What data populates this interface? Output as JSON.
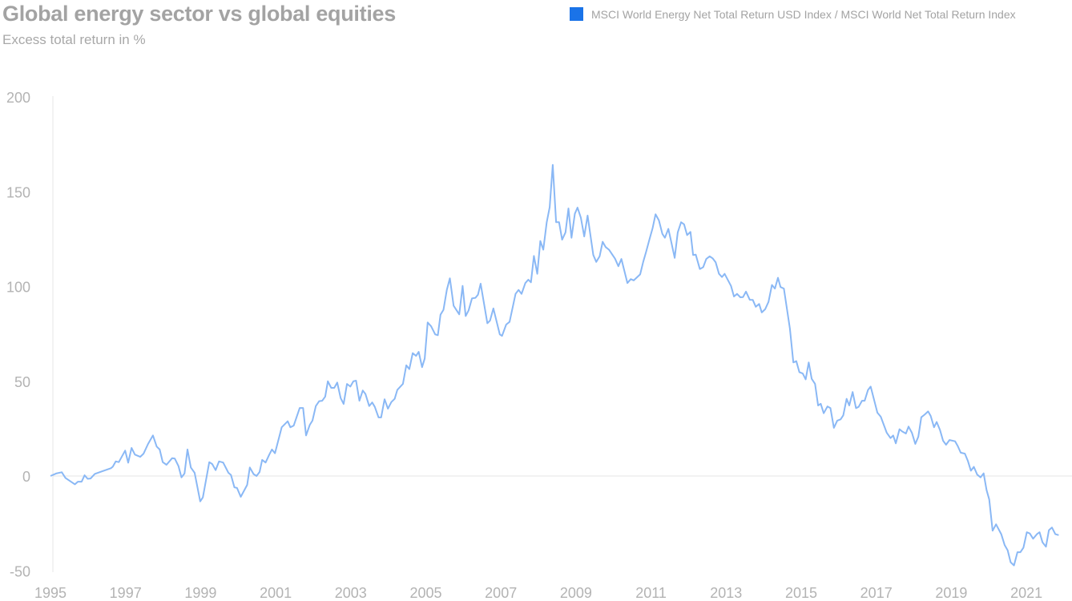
{
  "chart_data": {
    "type": "line",
    "title": "Global energy sector vs global equities",
    "subtitle": "Excess total return in %",
    "xlabel": "",
    "ylabel": "Excess total return in %",
    "xlim": [
      1995,
      2022.15
    ],
    "ylim": [
      -50,
      200
    ],
    "x_ticks": [
      "1995",
      "1997",
      "1999",
      "2001",
      "2003",
      "2005",
      "2007",
      "2009",
      "2011",
      "2013",
      "2015",
      "2017",
      "2019",
      "2021"
    ],
    "y_ticks": [
      "200",
      "150",
      "100",
      "50",
      "0",
      "-50"
    ],
    "grid": "zero-line only",
    "legend_position": "top-right",
    "series": [
      {
        "name": "MSCI World Energy Net Total Return USD Index / MSCI World Net Total Return Index",
        "color": "#8ab8f5",
        "legend_color": "#1a73e8",
        "points": [
          [
            1995.0,
            0
          ],
          [
            1995.15,
            1.3
          ],
          [
            1995.3,
            2
          ],
          [
            1995.4,
            -1
          ],
          [
            1995.65,
            -4.4
          ],
          [
            1995.73,
            -3
          ],
          [
            1995.83,
            -3
          ],
          [
            1995.91,
            0.4
          ],
          [
            1995.99,
            -1.5
          ],
          [
            1996.07,
            -1.3
          ],
          [
            1996.18,
            1.1
          ],
          [
            1996.61,
            4.1
          ],
          [
            1996.66,
            4.9
          ],
          [
            1996.74,
            7.7
          ],
          [
            1996.82,
            7.3
          ],
          [
            1996.99,
            13.4
          ],
          [
            1997.07,
            7
          ],
          [
            1997.16,
            14.8
          ],
          [
            1997.25,
            11.3
          ],
          [
            1997.39,
            10.1
          ],
          [
            1997.48,
            11.8
          ],
          [
            1997.6,
            16.9
          ],
          [
            1997.73,
            21.4
          ],
          [
            1997.83,
            15.5
          ],
          [
            1997.91,
            14
          ],
          [
            1997.99,
            7.3
          ],
          [
            1998.09,
            5.9
          ],
          [
            1998.24,
            9.4
          ],
          [
            1998.31,
            9.2
          ],
          [
            1998.41,
            5.2
          ],
          [
            1998.49,
            -0.7
          ],
          [
            1998.57,
            1.3
          ],
          [
            1998.65,
            14
          ],
          [
            1998.74,
            4.5
          ],
          [
            1998.84,
            1.7
          ],
          [
            1998.99,
            -13.4
          ],
          [
            1999.06,
            -11.3
          ],
          [
            1999.23,
            7.3
          ],
          [
            1999.31,
            6.3
          ],
          [
            1999.4,
            3.1
          ],
          [
            1999.49,
            7.7
          ],
          [
            1999.6,
            7.1
          ],
          [
            1999.74,
            1.7
          ],
          [
            1999.81,
            0.5
          ],
          [
            1999.9,
            -6
          ],
          [
            1999.97,
            -6.3
          ],
          [
            2000.07,
            -11
          ],
          [
            2000.24,
            -4.7
          ],
          [
            2000.31,
            4.5
          ],
          [
            2000.41,
            1
          ],
          [
            2000.49,
            0
          ],
          [
            2000.57,
            2.1
          ],
          [
            2000.64,
            8.5
          ],
          [
            2000.73,
            7.1
          ],
          [
            2000.83,
            11.3
          ],
          [
            2000.9,
            14
          ],
          [
            2000.98,
            12
          ],
          [
            2001.16,
            25.7
          ],
          [
            2001.32,
            28.9
          ],
          [
            2001.39,
            25.7
          ],
          [
            2001.48,
            26.6
          ],
          [
            2001.64,
            35.9
          ],
          [
            2001.73,
            35.9
          ],
          [
            2001.81,
            21.4
          ],
          [
            2001.91,
            27
          ],
          [
            2001.98,
            29.2
          ],
          [
            2002.07,
            36.9
          ],
          [
            2002.16,
            39.5
          ],
          [
            2002.24,
            39.7
          ],
          [
            2002.32,
            41.9
          ],
          [
            2002.39,
            50
          ],
          [
            2002.48,
            46.5
          ],
          [
            2002.56,
            46.5
          ],
          [
            2002.64,
            49.3
          ],
          [
            2002.73,
            41.1
          ],
          [
            2002.81,
            38
          ],
          [
            2002.9,
            48.6
          ],
          [
            2002.99,
            47.2
          ],
          [
            2003.07,
            50
          ],
          [
            2003.14,
            50.3
          ],
          [
            2003.23,
            39.7
          ],
          [
            2003.32,
            45.1
          ],
          [
            2003.39,
            43.3
          ],
          [
            2003.49,
            36.9
          ],
          [
            2003.57,
            38.8
          ],
          [
            2003.64,
            36.5
          ],
          [
            2003.74,
            30.9
          ],
          [
            2003.81,
            30.9
          ],
          [
            2003.9,
            40.5
          ],
          [
            2003.99,
            35.5
          ],
          [
            2004.08,
            39
          ],
          [
            2004.17,
            40.7
          ],
          [
            2004.24,
            45.4
          ],
          [
            2004.39,
            48.6
          ],
          [
            2004.48,
            58.4
          ],
          [
            2004.56,
            56.4
          ],
          [
            2004.65,
            64.8
          ],
          [
            2004.74,
            63.4
          ],
          [
            2004.81,
            65.5
          ],
          [
            2004.9,
            57.4
          ],
          [
            2004.97,
            62
          ],
          [
            2005.05,
            81
          ],
          [
            2005.14,
            79
          ],
          [
            2005.25,
            74.7
          ],
          [
            2005.32,
            74.3
          ],
          [
            2005.39,
            85.1
          ],
          [
            2005.47,
            87.7
          ],
          [
            2005.56,
            98.2
          ],
          [
            2005.64,
            104.3
          ],
          [
            2005.74,
            89.8
          ],
          [
            2005.89,
            85.3
          ],
          [
            2005.98,
            100.3
          ],
          [
            2006.06,
            84.4
          ],
          [
            2006.14,
            87.4
          ],
          [
            2006.23,
            93.7
          ],
          [
            2006.32,
            94
          ],
          [
            2006.39,
            95.7
          ],
          [
            2006.46,
            101.5
          ],
          [
            2006.64,
            80.6
          ],
          [
            2006.71,
            82
          ],
          [
            2006.8,
            88.4
          ],
          [
            2006.97,
            74.7
          ],
          [
            2007.03,
            73.9
          ],
          [
            2007.14,
            79.9
          ],
          [
            2007.23,
            81.3
          ],
          [
            2007.39,
            96.1
          ],
          [
            2007.47,
            98.2
          ],
          [
            2007.55,
            96.1
          ],
          [
            2007.65,
            101.8
          ],
          [
            2007.73,
            103.6
          ],
          [
            2007.8,
            102.2
          ],
          [
            2007.88,
            116.1
          ],
          [
            2007.97,
            106.7
          ],
          [
            2008.05,
            124
          ],
          [
            2008.13,
            119.4
          ],
          [
            2008.22,
            133.9
          ],
          [
            2008.3,
            141.9
          ],
          [
            2008.38,
            164.2
          ],
          [
            2008.47,
            133.9
          ],
          [
            2008.55,
            133.9
          ],
          [
            2008.63,
            124.7
          ],
          [
            2008.72,
            128.5
          ],
          [
            2008.8,
            141.2
          ],
          [
            2008.88,
            125.7
          ],
          [
            2008.97,
            138.4
          ],
          [
            2009.04,
            141.6
          ],
          [
            2009.13,
            136.3
          ],
          [
            2009.22,
            126.4
          ],
          [
            2009.31,
            137.4
          ],
          [
            2009.46,
            116.6
          ],
          [
            2009.54,
            113
          ],
          [
            2009.63,
            115.9
          ],
          [
            2009.71,
            123.6
          ],
          [
            2009.79,
            120.8
          ],
          [
            2009.88,
            119.4
          ],
          [
            2010.04,
            114.7
          ],
          [
            2010.13,
            110.7
          ],
          [
            2010.21,
            114.5
          ],
          [
            2010.37,
            101.8
          ],
          [
            2010.46,
            103.9
          ],
          [
            2010.54,
            103.2
          ],
          [
            2010.71,
            106.4
          ],
          [
            2010.79,
            113
          ],
          [
            2010.87,
            118.4
          ],
          [
            2010.96,
            125
          ],
          [
            2011.04,
            130.7
          ],
          [
            2011.12,
            138.1
          ],
          [
            2011.21,
            134.9
          ],
          [
            2011.3,
            127.8
          ],
          [
            2011.37,
            125.7
          ],
          [
            2011.46,
            130.4
          ],
          [
            2011.53,
            124.3
          ],
          [
            2011.63,
            115.1
          ],
          [
            2011.71,
            128.5
          ],
          [
            2011.8,
            133.9
          ],
          [
            2011.88,
            132.8
          ],
          [
            2011.96,
            127.1
          ],
          [
            2012.05,
            128.8
          ],
          [
            2012.12,
            116.6
          ],
          [
            2012.19,
            116.8
          ],
          [
            2012.3,
            109.2
          ],
          [
            2012.39,
            110.2
          ],
          [
            2012.47,
            114.5
          ],
          [
            2012.56,
            115.9
          ],
          [
            2012.64,
            114.9
          ],
          [
            2012.72,
            112.8
          ],
          [
            2012.81,
            106.7
          ],
          [
            2012.89,
            105
          ],
          [
            2012.96,
            106.7
          ],
          [
            2013.13,
            100.3
          ],
          [
            2013.21,
            94.7
          ],
          [
            2013.29,
            96.1
          ],
          [
            2013.38,
            94.3
          ],
          [
            2013.45,
            94.4
          ],
          [
            2013.53,
            97.3
          ],
          [
            2013.63,
            93
          ],
          [
            2013.71,
            92.9
          ],
          [
            2013.79,
            89.3
          ],
          [
            2013.88,
            90.8
          ],
          [
            2013.95,
            86.3
          ],
          [
            2014.04,
            88
          ],
          [
            2014.13,
            91.9
          ],
          [
            2014.22,
            100.8
          ],
          [
            2014.3,
            98.9
          ],
          [
            2014.38,
            104.6
          ],
          [
            2014.45,
            99.7
          ],
          [
            2014.54,
            98.9
          ],
          [
            2014.7,
            77.8
          ],
          [
            2014.79,
            59.9
          ],
          [
            2014.87,
            60.6
          ],
          [
            2014.95,
            54.8
          ],
          [
            2015.04,
            54.1
          ],
          [
            2015.12,
            51
          ],
          [
            2015.2,
            59.9
          ],
          [
            2015.28,
            51.3
          ],
          [
            2015.37,
            48.6
          ],
          [
            2015.45,
            37.2
          ],
          [
            2015.52,
            38.1
          ],
          [
            2015.6,
            33.1
          ],
          [
            2015.7,
            36.7
          ],
          [
            2015.78,
            35.8
          ],
          [
            2015.87,
            25.4
          ],
          [
            2015.96,
            29.2
          ],
          [
            2016.05,
            29.9
          ],
          [
            2016.12,
            32
          ],
          [
            2016.21,
            40.7
          ],
          [
            2016.28,
            37.2
          ],
          [
            2016.37,
            44.3
          ],
          [
            2016.46,
            35.8
          ],
          [
            2016.53,
            36.5
          ],
          [
            2016.62,
            39.7
          ],
          [
            2016.69,
            39.7
          ],
          [
            2016.78,
            45.4
          ],
          [
            2016.85,
            47.2
          ],
          [
            2017.03,
            33.4
          ],
          [
            2017.12,
            31.3
          ],
          [
            2017.28,
            22.8
          ],
          [
            2017.38,
            20
          ],
          [
            2017.45,
            21.4
          ],
          [
            2017.52,
            17.2
          ],
          [
            2017.62,
            24.7
          ],
          [
            2017.69,
            23.5
          ],
          [
            2017.79,
            22.4
          ],
          [
            2017.86,
            26.1
          ],
          [
            2017.95,
            22.8
          ],
          [
            2018.04,
            16.9
          ],
          [
            2018.12,
            20.7
          ],
          [
            2018.2,
            31
          ],
          [
            2018.29,
            32.4
          ],
          [
            2018.38,
            34.1
          ],
          [
            2018.45,
            31.7
          ],
          [
            2018.54,
            25.7
          ],
          [
            2018.61,
            28.5
          ],
          [
            2018.7,
            24.2
          ],
          [
            2018.78,
            18.6
          ],
          [
            2018.86,
            16.5
          ],
          [
            2018.95,
            19
          ],
          [
            2019.1,
            18.3
          ],
          [
            2019.17,
            15.8
          ],
          [
            2019.25,
            12.3
          ],
          [
            2019.36,
            11.8
          ],
          [
            2019.44,
            8
          ],
          [
            2019.52,
            2.8
          ],
          [
            2019.6,
            4.8
          ],
          [
            2019.69,
            0.7
          ],
          [
            2019.78,
            -0.7
          ],
          [
            2019.86,
            1.4
          ],
          [
            2019.94,
            -7.5
          ],
          [
            2020.01,
            -12.4
          ],
          [
            2020.1,
            -28.9
          ],
          [
            2020.19,
            -25.5
          ],
          [
            2020.33,
            -30.7
          ],
          [
            2020.42,
            -36.4
          ],
          [
            2020.5,
            -39.2
          ],
          [
            2020.58,
            -45.5
          ],
          [
            2020.67,
            -47.2
          ],
          [
            2020.76,
            -40.2
          ],
          [
            2020.84,
            -40.2
          ],
          [
            2020.92,
            -37.8
          ],
          [
            2021.01,
            -29.7
          ],
          [
            2021.09,
            -30.3
          ],
          [
            2021.18,
            -33.1
          ],
          [
            2021.28,
            -30.7
          ],
          [
            2021.35,
            -29.7
          ],
          [
            2021.43,
            -35
          ],
          [
            2021.52,
            -37.3
          ],
          [
            2021.6,
            -28.6
          ],
          [
            2021.68,
            -27.2
          ],
          [
            2021.77,
            -30.7
          ],
          [
            2021.86,
            -31.2
          ]
        ]
      }
    ]
  }
}
